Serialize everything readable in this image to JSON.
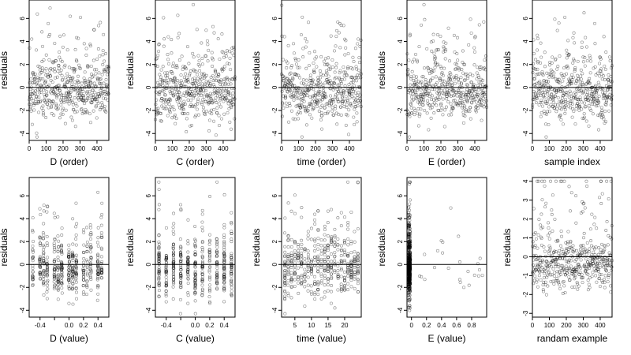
{
  "chart_data": [
    {
      "type": "scatter",
      "xlabel": "D (order)",
      "ylabel": "residuals",
      "x_range": [
        0,
        470
      ],
      "y_range": [
        -4.6,
        7.6
      ],
      "x_ticks": [
        0,
        100,
        200,
        300,
        400
      ],
      "y_ticks": [
        -4,
        -2,
        0,
        2,
        4,
        6
      ],
      "ref_line_y": 0,
      "generator": {
        "kind": "order",
        "n": 470,
        "x_min": 0,
        "x_max": 470,
        "y_center": 0,
        "y_spread": 1.6,
        "y_min": -4.3,
        "y_max": 7.2,
        "seed": 11
      }
    },
    {
      "type": "scatter",
      "xlabel": "C (order)",
      "ylabel": "residuals",
      "x_range": [
        0,
        470
      ],
      "y_range": [
        -4.6,
        7.6
      ],
      "x_ticks": [
        0,
        100,
        200,
        300,
        400
      ],
      "y_ticks": [
        -4,
        -2,
        0,
        2,
        4,
        6
      ],
      "ref_line_y": 0,
      "generator": {
        "kind": "order",
        "n": 470,
        "x_min": 0,
        "x_max": 470,
        "y_center": 0,
        "y_spread": 1.6,
        "y_min": -4.3,
        "y_max": 7.2,
        "seed": 12
      }
    },
    {
      "type": "scatter",
      "xlabel": "time (order)",
      "ylabel": "residuals",
      "x_range": [
        0,
        470
      ],
      "y_range": [
        -4.6,
        7.6
      ],
      "x_ticks": [
        0,
        100,
        200,
        300,
        400
      ],
      "y_ticks": [
        -4,
        -2,
        0,
        2,
        4,
        6
      ],
      "ref_line_y": 0,
      "generator": {
        "kind": "order",
        "n": 470,
        "x_min": 0,
        "x_max": 470,
        "y_center": 0,
        "y_spread": 1.6,
        "y_min": -4.3,
        "y_max": 7.2,
        "seed": 13
      }
    },
    {
      "type": "scatter",
      "xlabel": "E (order)",
      "ylabel": "residuals",
      "x_range": [
        0,
        470
      ],
      "y_range": [
        -4.6,
        7.6
      ],
      "x_ticks": [
        0,
        100,
        200,
        300,
        400
      ],
      "y_ticks": [
        -4,
        -2,
        0,
        2,
        4,
        6
      ],
      "ref_line_y": 0,
      "generator": {
        "kind": "order",
        "n": 470,
        "x_min": 0,
        "x_max": 470,
        "y_center": 0,
        "y_spread": 1.6,
        "y_min": -4.3,
        "y_max": 7.2,
        "seed": 14
      }
    },
    {
      "type": "scatter",
      "xlabel": "sample index",
      "ylabel": "residuals",
      "x_range": [
        0,
        470
      ],
      "y_range": [
        -4.6,
        7.6
      ],
      "x_ticks": [
        0,
        100,
        200,
        300,
        400
      ],
      "y_ticks": [
        -4,
        -2,
        0,
        2,
        4,
        6
      ],
      "ref_line_y": 0,
      "generator": {
        "kind": "order",
        "n": 470,
        "x_min": 0,
        "x_max": 470,
        "y_center": 0,
        "y_spread": 1.6,
        "y_min": -4.3,
        "y_max": 7.2,
        "seed": 15
      }
    },
    {
      "type": "scatter",
      "xlabel": "D (value)",
      "ylabel": "residuals",
      "x_range": [
        -0.55,
        0.55
      ],
      "y_range": [
        -4.6,
        7.6
      ],
      "x_ticks": [
        -0.4,
        -0.2,
        0.0,
        0.2,
        0.4
      ],
      "x_tick_labels": [
        "-0.4",
        "",
        "0.0",
        "0.2",
        "0.4"
      ],
      "y_ticks": [
        -4,
        -2,
        0,
        2,
        4,
        6
      ],
      "ref_line_y": 0,
      "generator": {
        "kind": "discrete",
        "n": 470,
        "levels": [
          -0.5,
          -0.4,
          -0.35,
          -0.3,
          -0.2,
          -0.15,
          -0.1,
          0.0,
          0.05,
          0.1,
          0.2,
          0.25,
          0.3,
          0.4,
          0.45
        ],
        "jitter": 0.006,
        "y_center": 0,
        "y_spread": 1.6,
        "y_min": -4.3,
        "y_max": 7.2,
        "seed": 21
      }
    },
    {
      "type": "scatter",
      "xlabel": "C (value)",
      "ylabel": "residuals",
      "x_range": [
        -0.55,
        0.55
      ],
      "y_range": [
        -4.6,
        7.6
      ],
      "x_ticks": [
        -0.4,
        -0.2,
        0.0,
        0.2,
        0.4
      ],
      "x_tick_labels": [
        "-0.4",
        "",
        "0.0",
        "0.2",
        "0.4"
      ],
      "y_ticks": [
        -4,
        -2,
        0,
        2,
        4,
        6
      ],
      "ref_line_y": 0,
      "generator": {
        "kind": "discrete",
        "n": 470,
        "levels": [
          -0.5,
          -0.4,
          -0.3,
          -0.2,
          -0.1,
          0.0,
          0.1,
          0.2,
          0.3,
          0.4,
          0.5
        ],
        "jitter": 0.004,
        "y_center": 0,
        "y_spread": 1.6,
        "y_min": -4.3,
        "y_max": 7.2,
        "seed": 22
      }
    },
    {
      "type": "scatter",
      "xlabel": "time (value)",
      "ylabel": "residuals",
      "x_range": [
        1,
        25
      ],
      "y_range": [
        -4.6,
        7.6
      ],
      "x_ticks": [
        5,
        10,
        15,
        20
      ],
      "y_ticks": [
        -4,
        -2,
        0,
        2,
        4,
        6
      ],
      "ref_line_y": 0,
      "generator": {
        "kind": "discrete",
        "n": 470,
        "levels": [
          2,
          3,
          4,
          5,
          6,
          7,
          8,
          9,
          10,
          11,
          12,
          13,
          14,
          15,
          16,
          17,
          18,
          19,
          20,
          21,
          22,
          23,
          24
        ],
        "jitter": 0.05,
        "y_center": 0,
        "y_spread": 1.6,
        "y_min": -4.3,
        "y_max": 7.2,
        "seed": 23
      }
    },
    {
      "type": "scatter",
      "xlabel": "E (value)",
      "ylabel": "residuals",
      "x_range": [
        -0.06,
        1.0
      ],
      "y_range": [
        -4.6,
        7.6
      ],
      "x_ticks": [
        0.0,
        0.2,
        0.4,
        0.6,
        0.8
      ],
      "y_ticks": [
        -4,
        -2,
        0,
        2,
        4,
        6
      ],
      "ref_line_y": 0,
      "generator": {
        "kind": "skewed",
        "n": 470,
        "cluster_x": -0.03,
        "cluster_w": 0.015,
        "outlier_count": 24,
        "outlier_x_min": 0.05,
        "outlier_x_max": 0.95,
        "y_center": 0,
        "y_spread": 1.6,
        "y_min": -4.3,
        "y_max": 7.2,
        "seed": 24
      }
    },
    {
      "type": "scatter",
      "xlabel": "randam example",
      "ylabel": "residuals",
      "x_range": [
        0,
        470
      ],
      "y_range": [
        -3.2,
        4.2
      ],
      "x_ticks": [
        0,
        100,
        200,
        300,
        400
      ],
      "y_ticks": [
        -3,
        -2,
        -1,
        0,
        1,
        2,
        3,
        4
      ],
      "ref_line_y": 0,
      "generator": {
        "kind": "order",
        "n": 470,
        "x_min": 0,
        "x_max": 470,
        "y_center": 0,
        "y_spread": 1.0,
        "y_min": -3.0,
        "y_max": 4.0,
        "seed": 25
      }
    }
  ]
}
